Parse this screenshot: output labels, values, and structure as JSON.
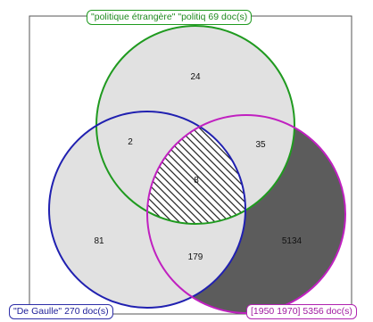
{
  "sets": [
    {
      "id": "A",
      "label": "\"politique étrangère\" \"politiq 69 doc(s)",
      "color": "#1f9a1f"
    },
    {
      "id": "B",
      "label": "\"De Gaulle\" 270 doc(s)",
      "color": "#2020b0"
    },
    {
      "id": "C",
      "label": "[1950 1970] 5356 doc(s)",
      "color": "#c020c0"
    }
  ],
  "regions": {
    "a_only": "24",
    "ab_only": "2",
    "ac_only": "35",
    "abc": "8",
    "b_only": "81",
    "bc_only": "179",
    "c_only": "5134"
  },
  "colors": {
    "fill_default": "#e1e1e1",
    "fill_c_only": "#5c5c5c",
    "hatch": "#2a2a2a",
    "frame": "#555555"
  }
}
